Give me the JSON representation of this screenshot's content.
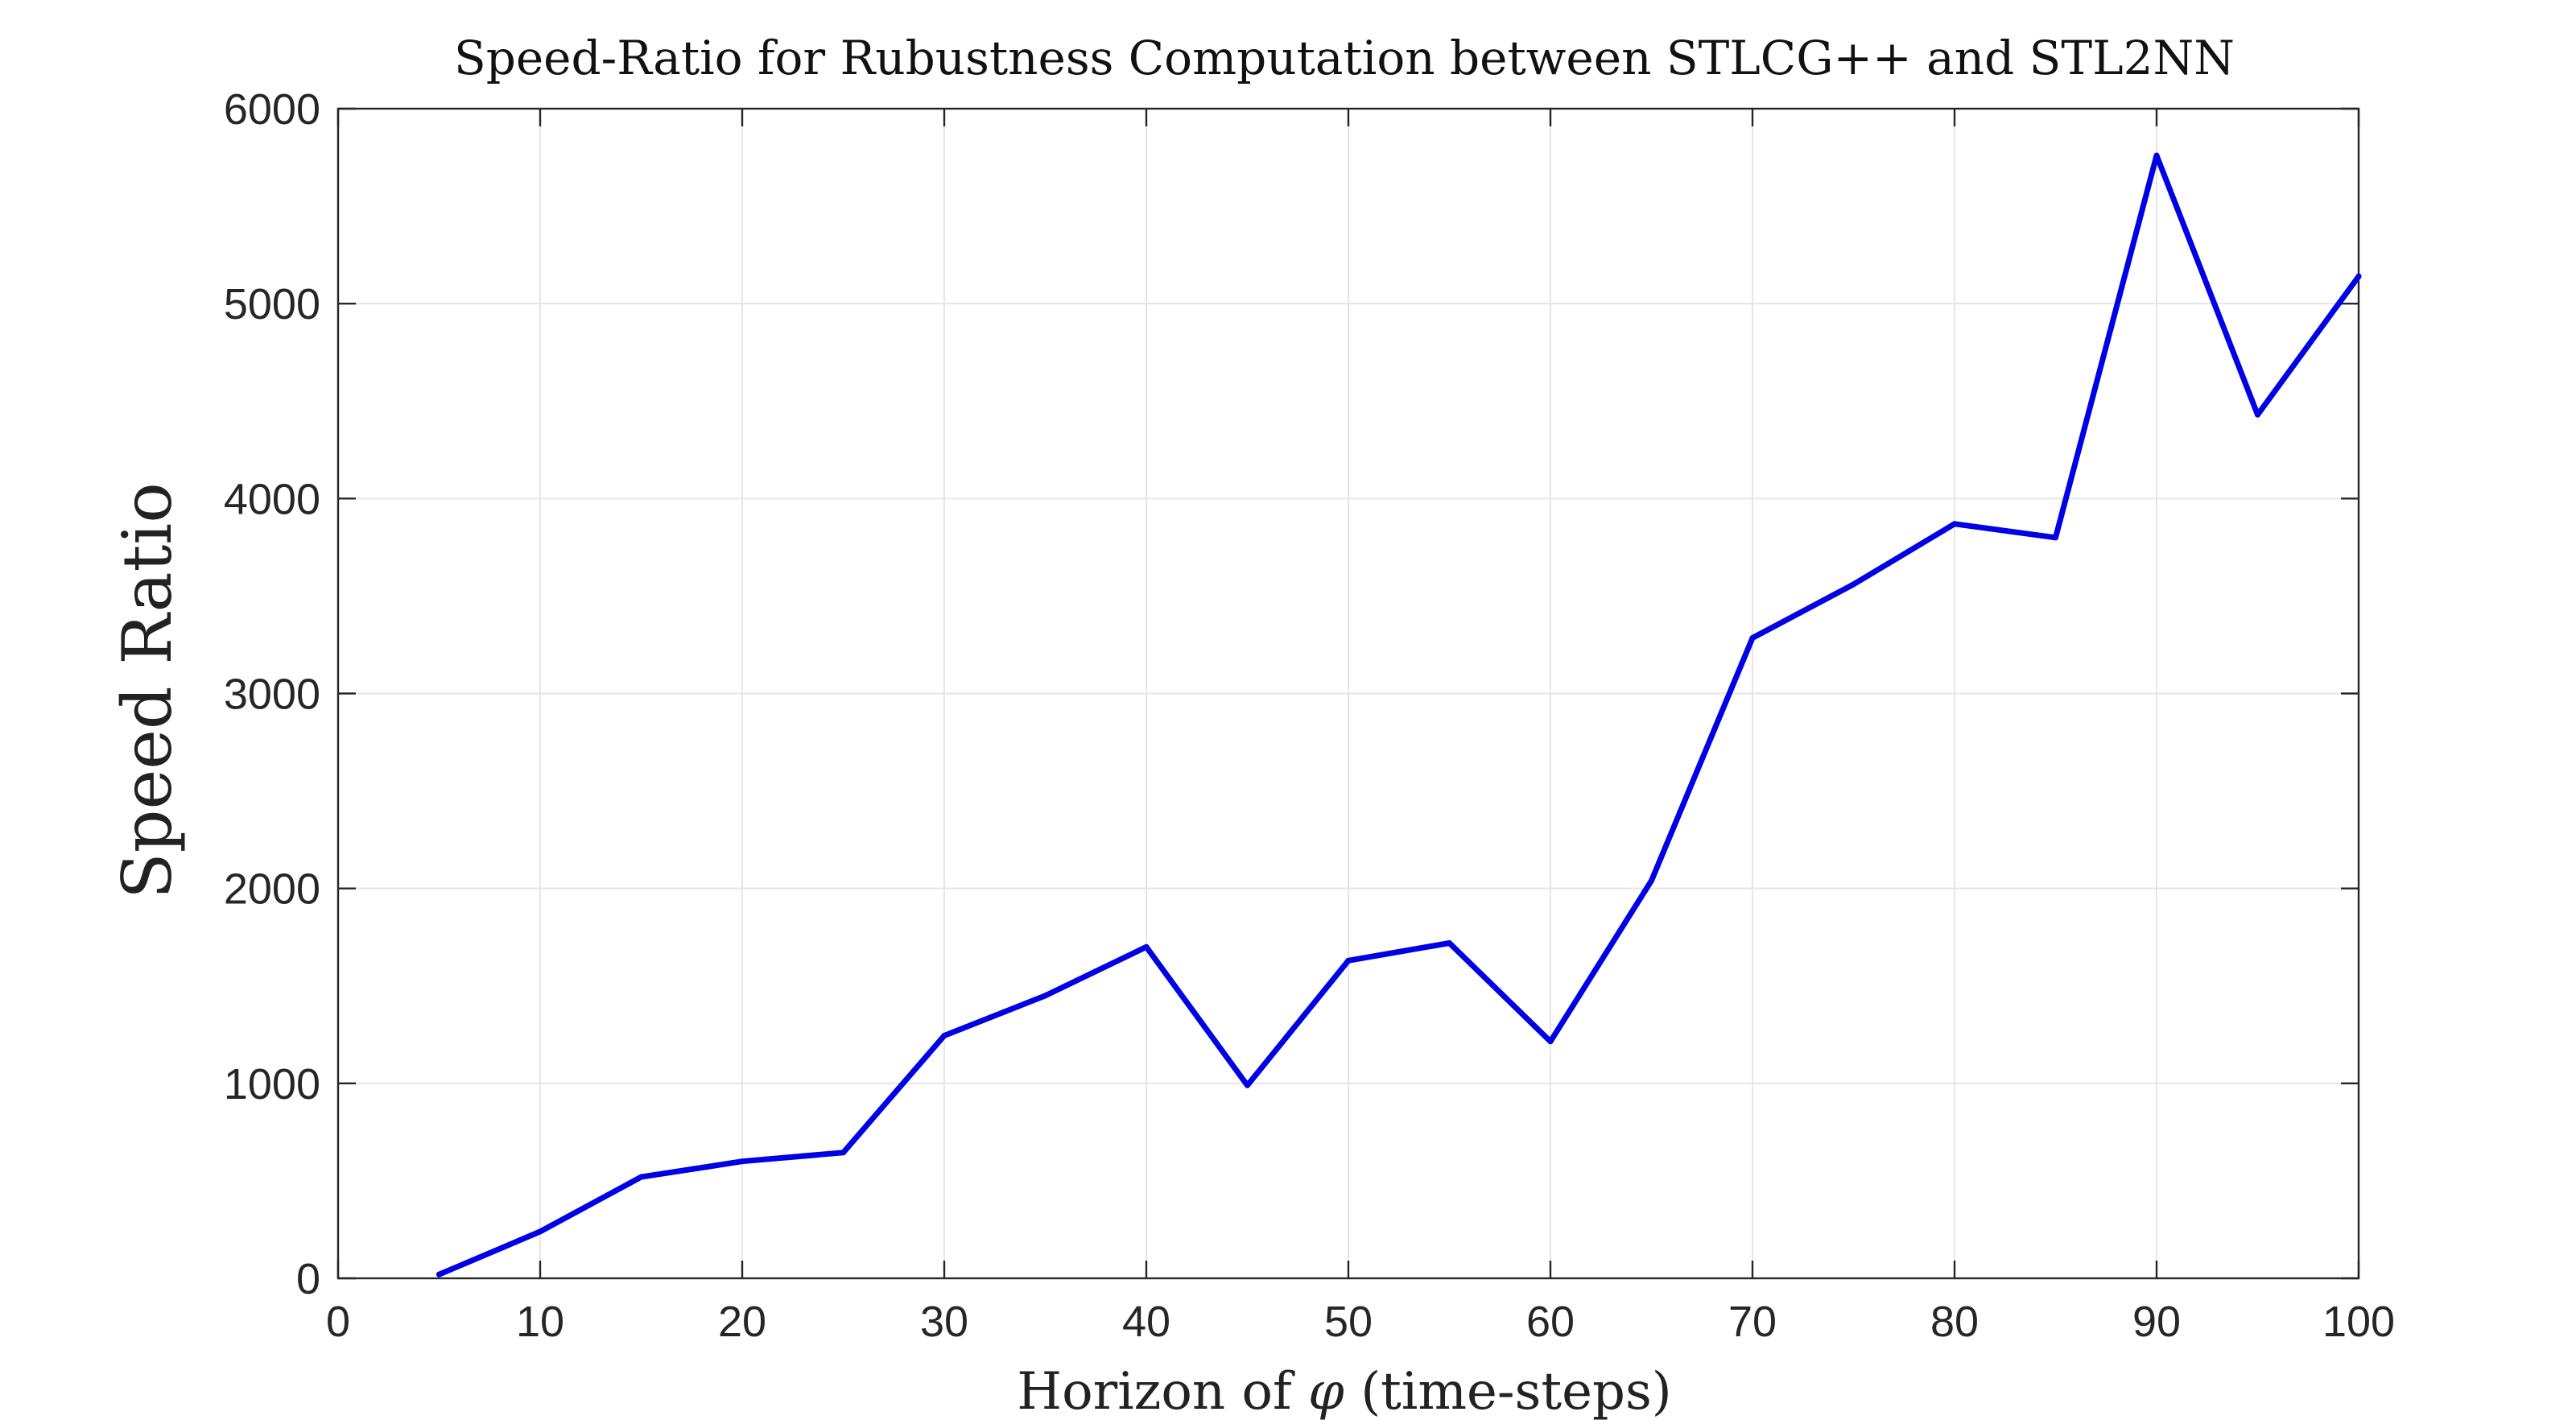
{
  "chart_data": {
    "type": "line",
    "title": "Speed-Ratio for Rubustness Computation between STLCG++ and STL2NN",
    "xlabel_prefix": "Horizon of ",
    "xlabel_symbol": "φ",
    "xlabel_suffix": " (time-steps)",
    "ylabel": "Speed Ratio",
    "xlim": [
      0,
      100
    ],
    "ylim": [
      0,
      6000
    ],
    "xticks": [
      0,
      10,
      20,
      30,
      40,
      50,
      60,
      70,
      80,
      90,
      100
    ],
    "yticks": [
      0,
      1000,
      2000,
      3000,
      4000,
      5000,
      6000
    ],
    "grid": true,
    "series": [
      {
        "color": "#0000e6",
        "x": [
          5,
          10,
          15,
          20,
          25,
          30,
          35,
          40,
          45,
          50,
          55,
          60,
          65,
          70,
          75,
          80,
          85,
          90,
          95,
          100
        ],
        "y": [
          20,
          240,
          520,
          600,
          645,
          1245,
          1450,
          1700,
          990,
          1630,
          1720,
          1215,
          2040,
          3285,
          3560,
          3870,
          3800,
          5760,
          4430,
          5140
        ]
      }
    ]
  }
}
